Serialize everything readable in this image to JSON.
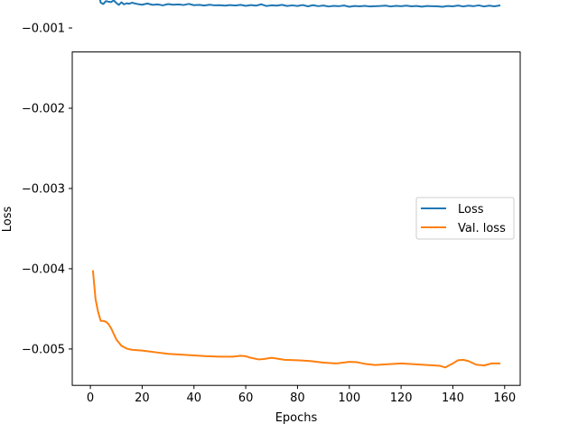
{
  "chart_data": {
    "type": "line",
    "title": "",
    "xlabel": "Epochs",
    "ylabel": "Loss",
    "xlim": [
      -7,
      166
    ],
    "ylim": [
      -0.0054533,
      -0.0012988
    ],
    "x_ticks": [
      0,
      20,
      40,
      60,
      80,
      100,
      120,
      140,
      160
    ],
    "x_tick_labels": [
      "0",
      "20",
      "40",
      "60",
      "80",
      "100",
      "120",
      "140",
      "160"
    ],
    "y_ticks": [
      -0.001,
      -0.002,
      -0.003,
      -0.004,
      -0.005
    ],
    "y_tick_labels": [
      "−0.001",
      "−0.002",
      "−0.003",
      "−0.004",
      "−0.005"
    ],
    "grid": false,
    "legend_position": "center-right",
    "series": [
      {
        "name": "Loss",
        "color": "#1f77b4",
        "x": [
          1,
          2,
          3,
          4,
          5,
          6,
          7,
          8,
          9,
          10,
          11,
          12,
          13,
          14,
          15,
          16,
          18,
          20,
          22,
          24,
          26,
          28,
          30,
          32,
          34,
          36,
          38,
          40,
          42,
          44,
          46,
          48,
          50,
          52,
          54,
          56,
          58,
          60,
          62,
          64,
          66,
          68,
          70,
          72,
          74,
          76,
          78,
          80,
          82,
          84,
          86,
          88,
          90,
          92,
          94,
          96,
          98,
          100,
          102,
          104,
          106,
          108,
          110,
          112,
          114,
          116,
          118,
          120,
          122,
          124,
          126,
          128,
          130,
          132,
          134,
          136,
          138,
          140,
          142,
          144,
          146,
          148,
          150,
          152,
          154,
          156,
          158
        ],
        "y": [
          -0.000583,
          -0.000628,
          -0.000545,
          -0.000685,
          -0.000701,
          -0.000665,
          -0.000672,
          -0.000678,
          -0.000655,
          -0.000688,
          -0.000712,
          -0.00068,
          -0.000706,
          -0.000692,
          -0.000698,
          -0.000685,
          -0.0007,
          -0.00071,
          -0.000695,
          -0.000712,
          -0.000706,
          -0.000718,
          -0.000702,
          -0.00071,
          -0.000706,
          -0.000714,
          -0.0007,
          -0.000716,
          -0.000712,
          -0.00072,
          -0.00071,
          -0.000718,
          -0.000716,
          -0.000722,
          -0.000715,
          -0.00072,
          -0.000712,
          -0.000724,
          -0.000715,
          -0.000722,
          -0.000705,
          -0.000726,
          -0.000718,
          -0.000722,
          -0.000712,
          -0.000726,
          -0.000718,
          -0.000726,
          -0.000714,
          -0.00073,
          -0.000716,
          -0.000728,
          -0.00072,
          -0.000732,
          -0.000724,
          -0.000728,
          -0.00072,
          -0.000736,
          -0.000726,
          -0.00073,
          -0.000724,
          -0.000732,
          -0.000728,
          -0.000726,
          -0.000722,
          -0.000732,
          -0.000724,
          -0.000728,
          -0.000722,
          -0.00073,
          -0.000726,
          -0.000734,
          -0.000726,
          -0.000728,
          -0.00073,
          -0.000736,
          -0.000726,
          -0.00073,
          -0.00072,
          -0.000732,
          -0.000722,
          -0.000728,
          -0.000718,
          -0.000732,
          -0.000722,
          -0.00073,
          -0.00072
        ]
      },
      {
        "name": "Val. loss",
        "color": "#ff7f0e",
        "x": [
          1,
          2,
          3,
          4,
          5,
          6,
          7,
          8,
          10,
          12,
          14,
          16,
          20,
          25,
          30,
          35,
          40,
          45,
          50,
          55,
          58,
          60,
          62,
          65,
          67,
          70,
          72,
          75,
          80,
          85,
          90,
          95,
          100,
          103,
          106,
          110,
          115,
          120,
          125,
          130,
          135,
          137,
          140,
          142,
          144,
          146,
          149,
          152,
          155,
          158
        ],
        "y": [
          -0.00403,
          -0.00438,
          -0.00454,
          -0.00465,
          -0.00465,
          -0.00466,
          -0.00469,
          -0.00474,
          -0.00488,
          -0.00496,
          -0.004995,
          -0.00501,
          -0.00502,
          -0.00504,
          -0.00506,
          -0.00507,
          -0.00508,
          -0.00509,
          -0.005095,
          -0.005095,
          -0.005085,
          -0.00509,
          -0.00511,
          -0.00513,
          -0.005125,
          -0.00511,
          -0.00512,
          -0.005135,
          -0.00514,
          -0.00515,
          -0.00517,
          -0.00518,
          -0.00516,
          -0.005165,
          -0.005185,
          -0.0052,
          -0.00519,
          -0.00518,
          -0.00519,
          -0.0052,
          -0.00521,
          -0.00523,
          -0.00518,
          -0.00514,
          -0.005135,
          -0.00515,
          -0.005195,
          -0.005205,
          -0.00518,
          -0.00518
        ]
      }
    ]
  }
}
